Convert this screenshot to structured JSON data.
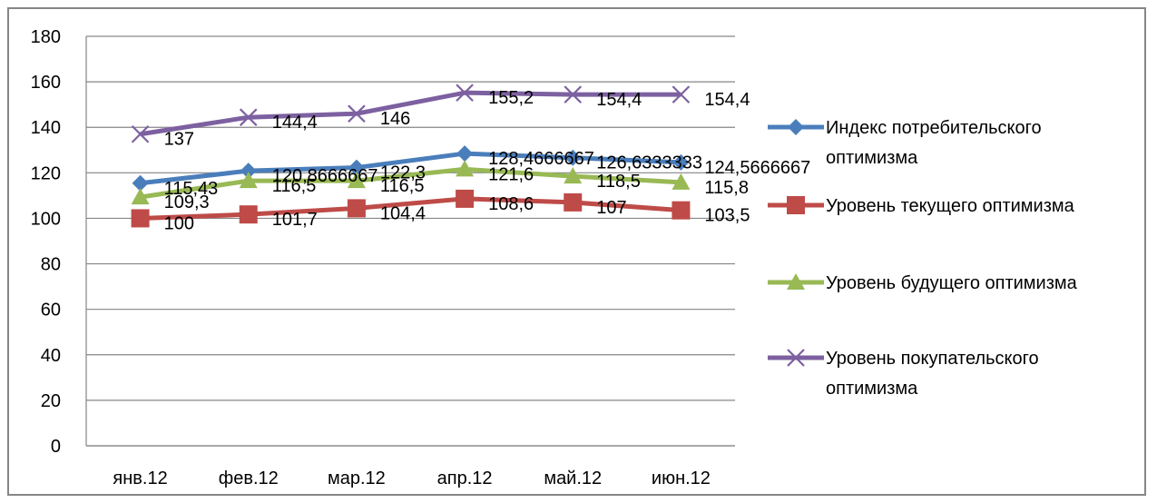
{
  "chart_data": {
    "type": "line",
    "categories": [
      "янв.12",
      "фев.12",
      "мар.12",
      "апр.12",
      "май.12",
      "июн.12"
    ],
    "ylim": [
      0,
      180
    ],
    "yticks": [
      0,
      20,
      40,
      60,
      80,
      100,
      120,
      140,
      160,
      180
    ],
    "grid": "horizontal",
    "legend_position": "right",
    "series": [
      {
        "name": "Индекс потребительского оптимизма",
        "legend_lines": [
          "Индекс потребительского",
          "оптимизма"
        ],
        "color": "#4a7ebb",
        "marker": "diamond",
        "values": [
          115.43,
          120.8666667,
          122.3,
          128.4666667,
          126.6333333,
          124.5666667
        ],
        "labels": [
          "115,43",
          "120,8666667",
          "122,3",
          "128,4666667",
          "126,6333333",
          "124,5666667"
        ]
      },
      {
        "name": "Уровень текущего оптимизма",
        "legend_lines": [
          "Уровень текущего оптимизма"
        ],
        "color": "#be4b48",
        "marker": "square",
        "values": [
          100,
          101.7,
          104.4,
          108.6,
          107,
          103.5
        ],
        "labels": [
          "100",
          "101,7",
          "104,4",
          "108,6",
          "107",
          "103,5"
        ]
      },
      {
        "name": "Уровень будущего оптимизма",
        "legend_lines": [
          "Уровень будущего оптимизма"
        ],
        "color": "#98b954",
        "marker": "triangle",
        "values": [
          109.3,
          116.5,
          116.5,
          121.6,
          118.5,
          115.8
        ],
        "labels": [
          "109,3",
          "116,5",
          "116,5",
          "121,6",
          "118,5",
          "115,8"
        ]
      },
      {
        "name": "Уровень покупательского оптимизма",
        "legend_lines": [
          "Уровень покупательского",
          "оптимизма"
        ],
        "color": "#7d60a0",
        "marker": "x",
        "values": [
          137,
          144.4,
          146,
          155.2,
          154.4,
          154.4
        ],
        "labels": [
          "137",
          "144,4",
          "146",
          "155,2",
          "154,4",
          "154,4"
        ]
      }
    ]
  }
}
